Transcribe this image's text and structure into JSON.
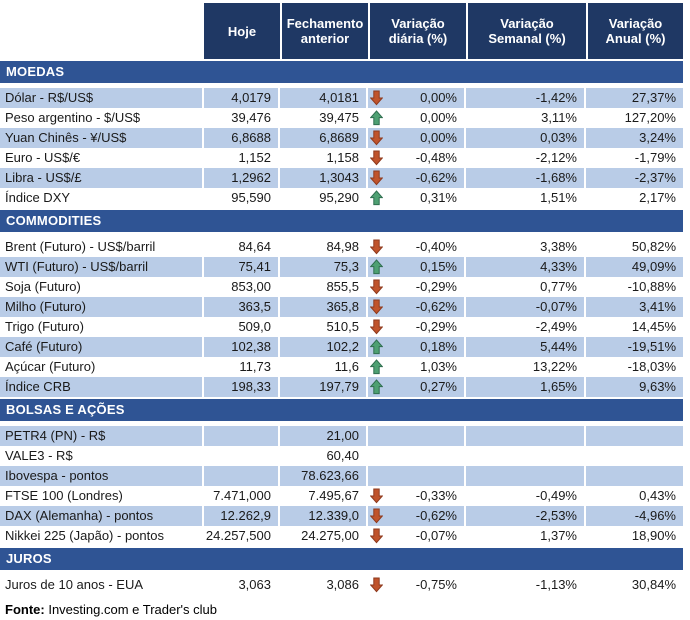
{
  "colors": {
    "header_bg": "#1F3864",
    "section_bg": "#2F5494",
    "band_bg": "#B9CCE7",
    "arrow_up": "#4EA072",
    "arrow_up_stroke": "#2F6E4F",
    "arrow_down": "#C0532B",
    "arrow_down_stroke": "#8E3A1E"
  },
  "columns": [
    "Hoje",
    "Fechamento anterior",
    "Variação diária (%)",
    "Variação Semanal (%)",
    "Variação Anual (%)"
  ],
  "sections": [
    {
      "title": "MOEDAS",
      "rows": [
        {
          "label": "Dólar - R$/US$",
          "hoje": "4,0179",
          "fechamento": "4,0181",
          "arrow": "down",
          "diaria": "0,00%",
          "semanal": "-1,42%",
          "anual": "27,37%"
        },
        {
          "label": "Peso argentino - $/US$",
          "hoje": "39,476",
          "fechamento": "39,475",
          "arrow": "up",
          "diaria": "0,00%",
          "semanal": "3,11%",
          "anual": "127,20%"
        },
        {
          "label": "Yuan Chinês - ¥/US$",
          "hoje": "6,8688",
          "fechamento": "6,8689",
          "arrow": "down",
          "diaria": "0,00%",
          "semanal": "0,03%",
          "anual": "3,24%"
        },
        {
          "label": "Euro - US$/€",
          "hoje": "1,152",
          "fechamento": "1,158",
          "arrow": "down",
          "diaria": "-0,48%",
          "semanal": "-2,12%",
          "anual": "-1,79%"
        },
        {
          "label": "Libra - US$/£",
          "hoje": "1,2962",
          "fechamento": "1,3043",
          "arrow": "down",
          "diaria": "-0,62%",
          "semanal": "-1,68%",
          "anual": "-2,37%"
        },
        {
          "label": "Índice DXY",
          "hoje": "95,590",
          "fechamento": "95,290",
          "arrow": "up",
          "diaria": "0,31%",
          "semanal": "1,51%",
          "anual": "2,17%"
        }
      ]
    },
    {
      "title": "COMMODITIES",
      "rows": [
        {
          "label": "Brent (Futuro) - US$/barril",
          "hoje": "84,64",
          "fechamento": "84,98",
          "arrow": "down",
          "diaria": "-0,40%",
          "semanal": "3,38%",
          "anual": "50,82%"
        },
        {
          "label": "WTI (Futuro) - US$/barril",
          "hoje": "75,41",
          "fechamento": "75,3",
          "arrow": "up",
          "diaria": "0,15%",
          "semanal": "4,33%",
          "anual": "49,09%"
        },
        {
          "label": "Soja (Futuro)",
          "hoje": "853,00",
          "fechamento": "855,5",
          "arrow": "down",
          "diaria": "-0,29%",
          "semanal": "0,77%",
          "anual": "-10,88%"
        },
        {
          "label": "Milho (Futuro)",
          "hoje": "363,5",
          "fechamento": "365,8",
          "arrow": "down",
          "diaria": "-0,62%",
          "semanal": "-0,07%",
          "anual": "3,41%"
        },
        {
          "label": "Trigo (Futuro)",
          "hoje": "509,0",
          "fechamento": "510,5",
          "arrow": "down",
          "diaria": "-0,29%",
          "semanal": "-2,49%",
          "anual": "14,45%"
        },
        {
          "label": "Café (Futuro)",
          "hoje": "102,38",
          "fechamento": "102,2",
          "arrow": "up",
          "diaria": "0,18%",
          "semanal": "5,44%",
          "anual": "-19,51%"
        },
        {
          "label": "Açúcar (Futuro)",
          "hoje": "11,73",
          "fechamento": "11,6",
          "arrow": "up",
          "diaria": "1,03%",
          "semanal": "13,22%",
          "anual": "-18,03%"
        },
        {
          "label": "Índice CRB",
          "hoje": "198,33",
          "fechamento": "197,79",
          "arrow": "up",
          "diaria": "0,27%",
          "semanal": "1,65%",
          "anual": "9,63%"
        }
      ]
    },
    {
      "title": "BOLSAS E AÇÕES",
      "rows": [
        {
          "label": "PETR4 (PN) - R$",
          "hoje": "",
          "fechamento": "21,00",
          "arrow": null,
          "diaria": "",
          "semanal": "",
          "anual": ""
        },
        {
          "label": "VALE3 - R$",
          "hoje": "",
          "fechamento": "60,40",
          "arrow": null,
          "diaria": "",
          "semanal": "",
          "anual": ""
        },
        {
          "label": "Ibovespa - pontos",
          "hoje": "",
          "fechamento": "78.623,66",
          "arrow": null,
          "diaria": "",
          "semanal": "",
          "anual": ""
        },
        {
          "label": "FTSE 100 (Londres)",
          "hoje": "7.471,000",
          "fechamento": "7.495,67",
          "arrow": "down",
          "diaria": "-0,33%",
          "semanal": "-0,49%",
          "anual": "0,43%"
        },
        {
          "label": "DAX (Alemanha) - pontos",
          "hoje": "12.262,9",
          "fechamento": "12.339,0",
          "arrow": "down",
          "diaria": "-0,62%",
          "semanal": "-2,53%",
          "anual": "-4,96%"
        },
        {
          "label": "Nikkei 225 (Japão) - pontos",
          "hoje": "24.257,500",
          "fechamento": "24.275,00",
          "arrow": "down",
          "diaria": "-0,07%",
          "semanal": "1,37%",
          "anual": "18,90%"
        }
      ]
    },
    {
      "title": "JUROS",
      "rows": [
        {
          "label": "Juros de 10 anos - EUA",
          "hoje": "3,063",
          "fechamento": "3,086",
          "arrow": "down",
          "diaria": "-0,75%",
          "semanal": "-1,13%",
          "anual": "30,84%"
        }
      ]
    }
  ],
  "footer": {
    "label": "Fonte:",
    "text": " Investing.com e Trader's club"
  }
}
